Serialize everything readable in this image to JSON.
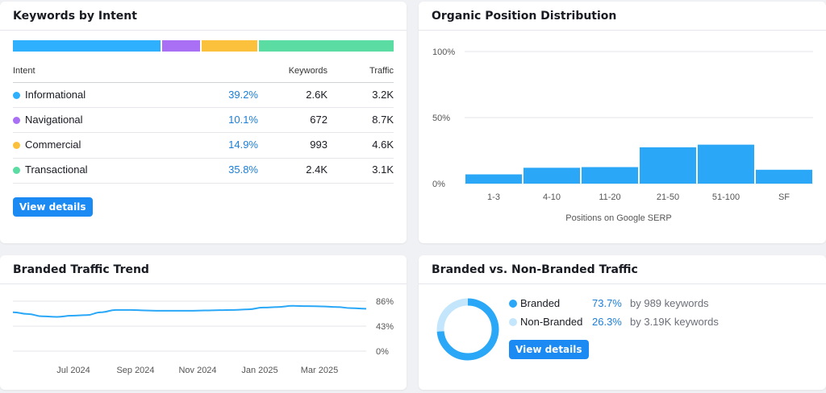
{
  "intent_card": {
    "title": "Keywords by Intent",
    "columns": {
      "intent": "Intent",
      "keywords": "Keywords",
      "traffic": "Traffic"
    },
    "rows": [
      {
        "name": "Informational",
        "percent": "39.2%",
        "keywords": "2.6K",
        "traffic": "3.2K",
        "color": "#2fb0ff",
        "share": 39.2
      },
      {
        "name": "Navigational",
        "percent": "10.1%",
        "keywords": "672",
        "traffic": "8.7K",
        "color": "#a970f5",
        "share": 10.1
      },
      {
        "name": "Commercial",
        "percent": "14.9%",
        "keywords": "993",
        "traffic": "4.6K",
        "color": "#fbc13c",
        "share": 14.9
      },
      {
        "name": "Transactional",
        "percent": "35.8%",
        "keywords": "2.4K",
        "traffic": "3.1K",
        "color": "#5bdca3",
        "share": 35.8
      }
    ],
    "button": "View details"
  },
  "organic_card": {
    "title": "Organic Position Distribution",
    "chart_data": {
      "type": "bar",
      "title": "Organic Position Distribution",
      "xlabel": "Positions on Google SERP",
      "ylabel": "",
      "categories": [
        "1-3",
        "4-10",
        "11-20",
        "21-50",
        "51-100",
        "SF"
      ],
      "values": [
        7,
        12,
        12.5,
        27.5,
        29.5,
        10.5
      ],
      "ylim": [
        0,
        100
      ],
      "yticks": [
        "100%",
        "50%",
        "0%"
      ],
      "color": "#2aa8f7"
    }
  },
  "branded_trend_card": {
    "title": "Branded Traffic Trend",
    "chart_data": {
      "type": "line",
      "title": "Branded Traffic Trend",
      "xlabel": "",
      "ylabel": "",
      "ylim": [
        0,
        86
      ],
      "yticks": [
        "86%",
        "43%",
        "0%"
      ],
      "xticks": [
        "Jul 2024",
        "Sep 2024",
        "Nov 2024",
        "Jan 2025",
        "Mar 2025"
      ],
      "x": [
        0,
        1,
        2,
        3,
        4,
        5,
        6,
        7,
        8,
        9,
        10,
        11,
        12,
        13,
        14,
        15,
        16,
        17,
        18,
        19,
        20,
        21,
        22,
        23,
        24
      ],
      "values": [
        67,
        64,
        60,
        59,
        61,
        62,
        67,
        71,
        71,
        70,
        69.5,
        69.5,
        69.5,
        70,
        70.5,
        71,
        72,
        75,
        76,
        78,
        77.5,
        77,
        76,
        74,
        73
      ],
      "color": "#2aa8f7"
    }
  },
  "branded_split_card": {
    "title": "Branded vs. Non-Branded Traffic",
    "chart_data": {
      "type": "pie",
      "labels": [
        "Branded",
        "Non-Branded"
      ],
      "values": [
        73.7,
        26.3
      ],
      "colors": [
        "#2aa8f7",
        "#c4e6fd"
      ]
    },
    "legend": [
      {
        "label": "Branded",
        "percent": "73.7%",
        "detail": "by 989 keywords",
        "color": "#2aa8f7"
      },
      {
        "label": "Non-Branded",
        "percent": "26.3%",
        "detail": "by 3.19K keywords",
        "color": "#c4e6fd"
      }
    ],
    "button": "View details"
  }
}
